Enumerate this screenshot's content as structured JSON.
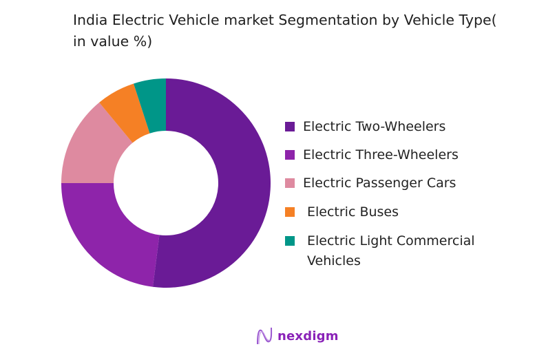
{
  "chart_data": {
    "type": "pie",
    "donut": true,
    "title": "India Electric Vehicle market Segmentation by Vehicle Type( in value %)",
    "categories": [
      "Electric Two-Wheelers",
      "Electric Three-Wheelers",
      "Electric Passenger Cars",
      "Electric Buses",
      "Electric Light Commercial Vehicles"
    ],
    "values": [
      52,
      23,
      14,
      6,
      5
    ],
    "colors": [
      "#6a1b96",
      "#8e24aa",
      "#de8aa0",
      "#f58025",
      "#009688"
    ],
    "start": "top",
    "direction": "clockwise",
    "legend_placement": "right"
  },
  "logo": {
    "text": "nexdigm",
    "icon": "wave-n-logo-icon",
    "color": "#8a22b8"
  }
}
